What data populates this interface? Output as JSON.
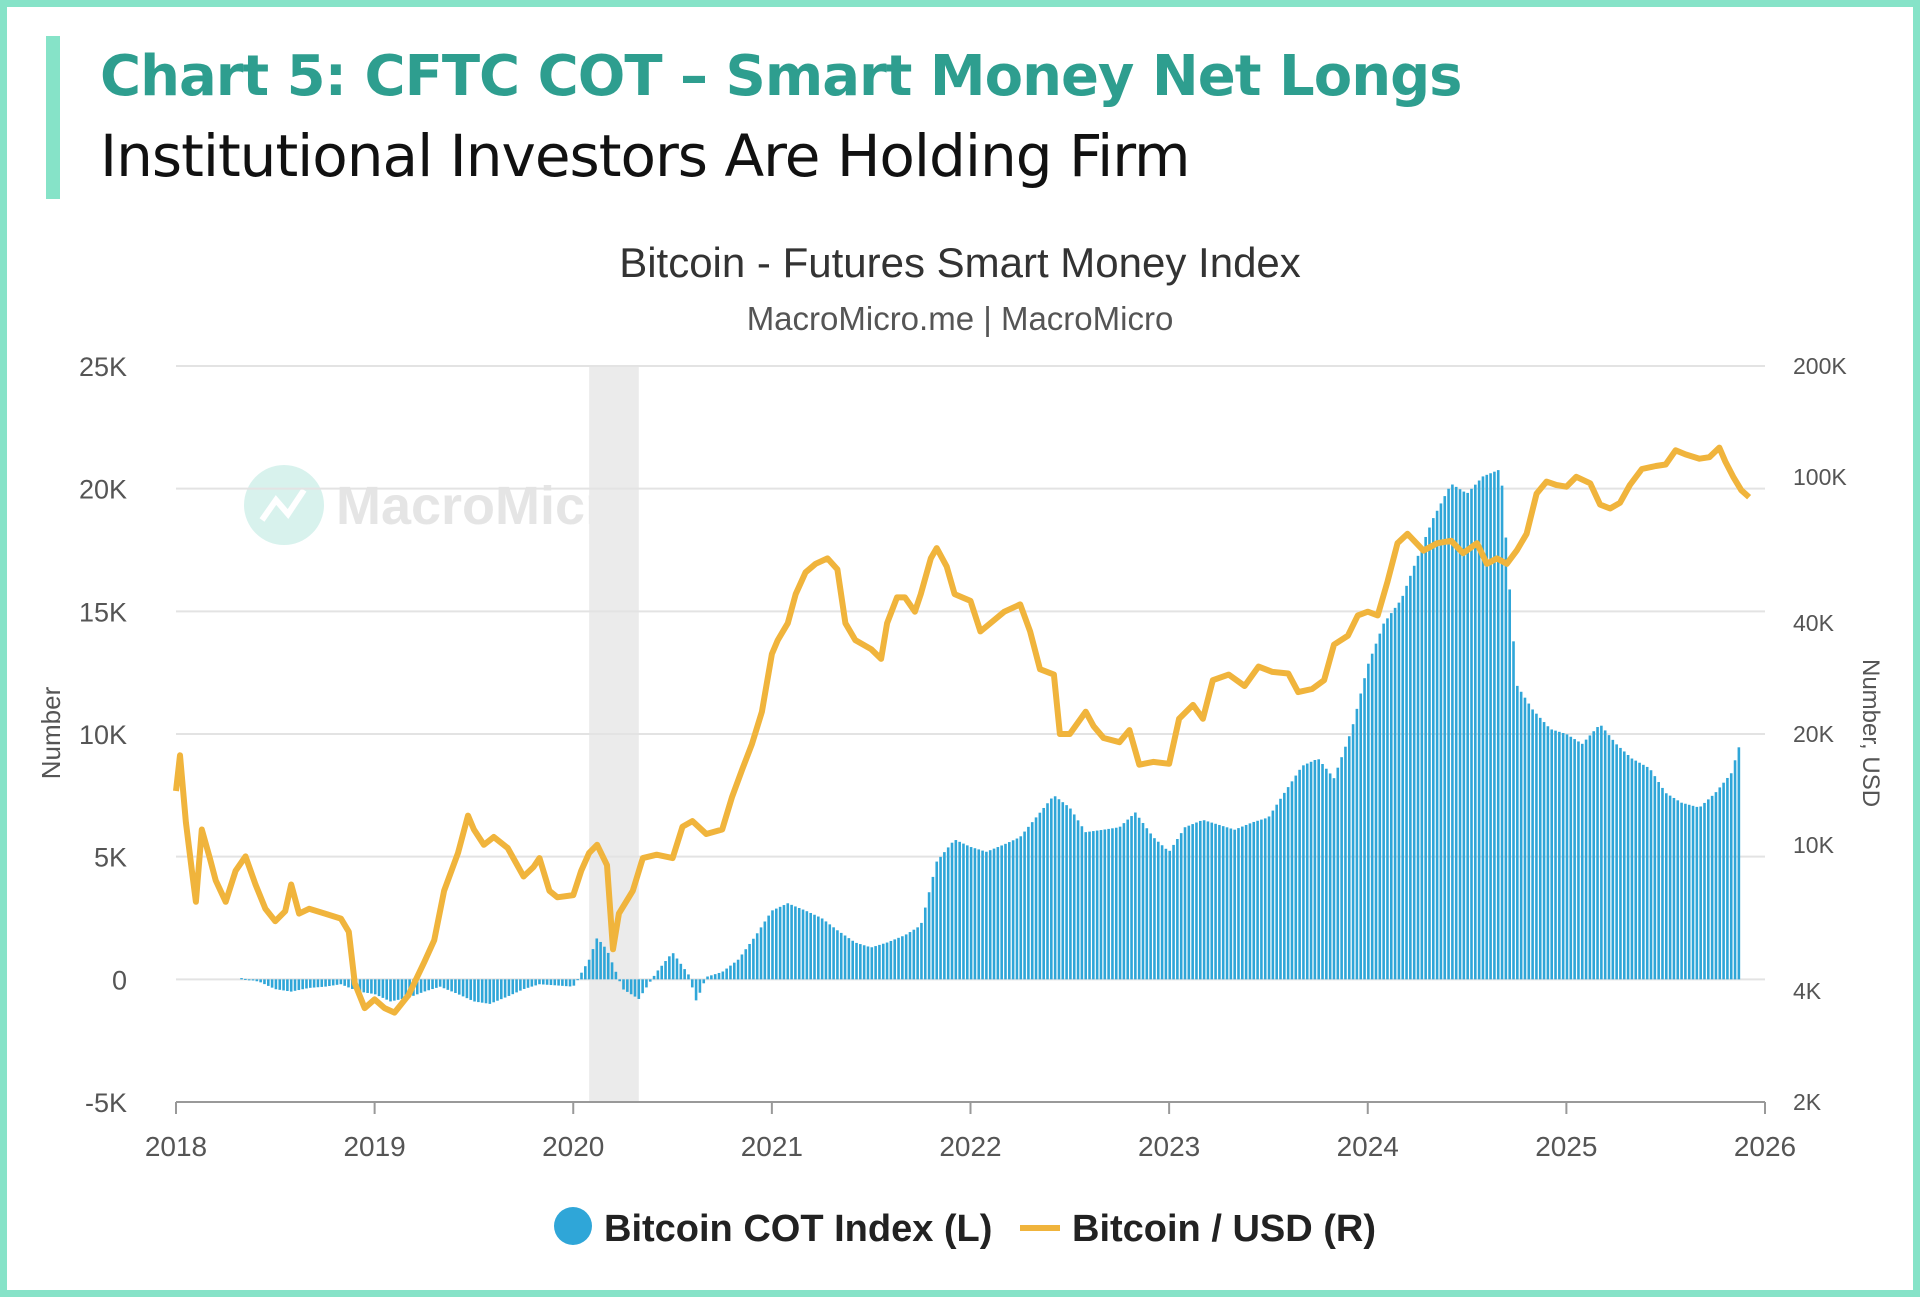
{
  "header": {
    "title": "Chart 5: CFTC COT – Smart Money Net Longs",
    "subtitle": "Institutional Investors Are Holding Firm"
  },
  "colors": {
    "frame": "#86e3c8",
    "heading_title": "#2e9e8f",
    "bars": "#2fa6d8",
    "line": "#f0b43c",
    "shading": "#ebebeb"
  },
  "watermark": {
    "text": "MacroMicro"
  },
  "chart_data": {
    "type": "bar+line",
    "title": "Bitcoin - Futures Smart Money Index",
    "subtitle": "MacroMicro.me | MacroMicro",
    "ylabel_left": "Number",
    "ylabel_right": "Number, USD",
    "x_ticks": [
      "2018",
      "2019",
      "2020",
      "2021",
      "2022",
      "2023",
      "2024",
      "2025",
      "2026"
    ],
    "x_range": [
      2018.0,
      2026.0
    ],
    "y_left": {
      "ticks": [
        "-5K",
        "0",
        "5K",
        "10K",
        "15K",
        "20K",
        "25K"
      ],
      "range": [
        -5000,
        25000
      ]
    },
    "y_right": {
      "scale": "log",
      "ticks": [
        "2K",
        "4K",
        "10K",
        "20K",
        "40K",
        "100K",
        "200K"
      ],
      "range": [
        2000,
        200000
      ]
    },
    "grid": "horizontal",
    "legend_position": "bottom",
    "shaded_period": [
      2020.08,
      2020.33
    ],
    "series": [
      {
        "name": "Bitcoin COT Index (L)",
        "type": "bar",
        "axis": "left",
        "points": [
          [
            2018.33,
            50
          ],
          [
            2018.42,
            -100
          ],
          [
            2018.5,
            -400
          ],
          [
            2018.58,
            -500
          ],
          [
            2018.67,
            -350
          ],
          [
            2018.75,
            -300
          ],
          [
            2018.83,
            -200
          ],
          [
            2018.92,
            -500
          ],
          [
            2019.0,
            -600
          ],
          [
            2019.08,
            -900
          ],
          [
            2019.17,
            -750
          ],
          [
            2019.25,
            -500
          ],
          [
            2019.33,
            -300
          ],
          [
            2019.42,
            -600
          ],
          [
            2019.5,
            -900
          ],
          [
            2019.58,
            -1000
          ],
          [
            2019.67,
            -700
          ],
          [
            2019.75,
            -400
          ],
          [
            2019.83,
            -200
          ],
          [
            2019.92,
            -250
          ],
          [
            2020.0,
            -300
          ],
          [
            2020.08,
            800
          ],
          [
            2020.12,
            1700
          ],
          [
            2020.17,
            1200
          ],
          [
            2020.25,
            -400
          ],
          [
            2020.33,
            -800
          ],
          [
            2020.42,
            300
          ],
          [
            2020.5,
            1100
          ],
          [
            2020.58,
            200
          ],
          [
            2020.62,
            -900
          ],
          [
            2020.67,
            100
          ],
          [
            2020.75,
            300
          ],
          [
            2020.83,
            800
          ],
          [
            2020.92,
            1800
          ],
          [
            2021.0,
            2800
          ],
          [
            2021.08,
            3100
          ],
          [
            2021.17,
            2800
          ],
          [
            2021.25,
            2500
          ],
          [
            2021.33,
            2000
          ],
          [
            2021.42,
            1500
          ],
          [
            2021.5,
            1300
          ],
          [
            2021.58,
            1500
          ],
          [
            2021.67,
            1800
          ],
          [
            2021.75,
            2200
          ],
          [
            2021.83,
            4800
          ],
          [
            2021.92,
            5700
          ],
          [
            2022.0,
            5400
          ],
          [
            2022.08,
            5200
          ],
          [
            2022.17,
            5500
          ],
          [
            2022.25,
            5800
          ],
          [
            2022.33,
            6600
          ],
          [
            2022.42,
            7500
          ],
          [
            2022.5,
            7000
          ],
          [
            2022.58,
            6000
          ],
          [
            2022.67,
            6100
          ],
          [
            2022.75,
            6200
          ],
          [
            2022.83,
            6800
          ],
          [
            2022.92,
            5800
          ],
          [
            2023.0,
            5200
          ],
          [
            2023.08,
            6200
          ],
          [
            2023.17,
            6500
          ],
          [
            2023.25,
            6300
          ],
          [
            2023.33,
            6100
          ],
          [
            2023.42,
            6400
          ],
          [
            2023.5,
            6600
          ],
          [
            2023.58,
            7600
          ],
          [
            2023.67,
            8700
          ],
          [
            2023.75,
            9000
          ],
          [
            2023.83,
            8200
          ],
          [
            2023.92,
            10200
          ],
          [
            2024.0,
            12800
          ],
          [
            2024.08,
            14500
          ],
          [
            2024.17,
            15500
          ],
          [
            2024.25,
            17200
          ],
          [
            2024.33,
            18800
          ],
          [
            2024.42,
            20200
          ],
          [
            2024.5,
            19800
          ],
          [
            2024.58,
            20500
          ],
          [
            2024.67,
            20800
          ],
          [
            2024.75,
            12000
          ],
          [
            2024.83,
            11000
          ],
          [
            2024.92,
            10200
          ],
          [
            2025.0,
            10000
          ],
          [
            2025.08,
            9600
          ],
          [
            2025.17,
            10400
          ],
          [
            2025.25,
            9600
          ],
          [
            2025.33,
            9000
          ],
          [
            2025.42,
            8600
          ],
          [
            2025.5,
            7600
          ],
          [
            2025.58,
            7200
          ],
          [
            2025.67,
            7000
          ],
          [
            2025.75,
            7600
          ],
          [
            2025.83,
            8400
          ],
          [
            2025.87,
            9500
          ]
        ]
      },
      {
        "name": "Bitcoin / USD (R)",
        "type": "line",
        "axis": "right",
        "points": [
          [
            2018.0,
            14000
          ],
          [
            2018.02,
            17500
          ],
          [
            2018.05,
            11500
          ],
          [
            2018.08,
            8500
          ],
          [
            2018.1,
            7000
          ],
          [
            2018.13,
            11000
          ],
          [
            2018.17,
            9200
          ],
          [
            2018.2,
            8000
          ],
          [
            2018.25,
            7000
          ],
          [
            2018.3,
            8500
          ],
          [
            2018.35,
            9300
          ],
          [
            2018.4,
            7800
          ],
          [
            2018.45,
            6700
          ],
          [
            2018.5,
            6200
          ],
          [
            2018.55,
            6600
          ],
          [
            2018.58,
            7800
          ],
          [
            2018.62,
            6500
          ],
          [
            2018.67,
            6700
          ],
          [
            2018.75,
            6500
          ],
          [
            2018.83,
            6300
          ],
          [
            2018.87,
            5800
          ],
          [
            2018.9,
            4200
          ],
          [
            2018.95,
            3600
          ],
          [
            2019.0,
            3800
          ],
          [
            2019.05,
            3600
          ],
          [
            2019.1,
            3500
          ],
          [
            2019.17,
            3900
          ],
          [
            2019.25,
            4800
          ],
          [
            2019.3,
            5500
          ],
          [
            2019.35,
            7500
          ],
          [
            2019.42,
            9500
          ],
          [
            2019.47,
            12000
          ],
          [
            2019.5,
            11000
          ],
          [
            2019.55,
            10000
          ],
          [
            2019.6,
            10500
          ],
          [
            2019.67,
            9800
          ],
          [
            2019.75,
            8200
          ],
          [
            2019.8,
            8700
          ],
          [
            2019.83,
            9200
          ],
          [
            2019.88,
            7500
          ],
          [
            2019.92,
            7200
          ],
          [
            2020.0,
            7300
          ],
          [
            2020.04,
            8500
          ],
          [
            2020.08,
            9500
          ],
          [
            2020.12,
            10000
          ],
          [
            2020.17,
            8800
          ],
          [
            2020.2,
            5200
          ],
          [
            2020.23,
            6500
          ],
          [
            2020.3,
            7500
          ],
          [
            2020.35,
            9200
          ],
          [
            2020.42,
            9400
          ],
          [
            2020.5,
            9200
          ],
          [
            2020.55,
            11200
          ],
          [
            2020.6,
            11600
          ],
          [
            2020.67,
            10700
          ],
          [
            2020.75,
            11000
          ],
          [
            2020.8,
            13500
          ],
          [
            2020.85,
            16000
          ],
          [
            2020.9,
            18800
          ],
          [
            2020.95,
            23000
          ],
          [
            2021.0,
            33000
          ],
          [
            2021.03,
            36000
          ],
          [
            2021.08,
            40000
          ],
          [
            2021.12,
            48000
          ],
          [
            2021.17,
            55000
          ],
          [
            2021.22,
            58000
          ],
          [
            2021.28,
            60000
          ],
          [
            2021.33,
            56000
          ],
          [
            2021.37,
            40000
          ],
          [
            2021.42,
            36000
          ],
          [
            2021.5,
            34000
          ],
          [
            2021.55,
            32000
          ],
          [
            2021.58,
            40000
          ],
          [
            2021.63,
            47000
          ],
          [
            2021.67,
            47000
          ],
          [
            2021.72,
            43000
          ],
          [
            2021.75,
            48000
          ],
          [
            2021.8,
            60000
          ],
          [
            2021.83,
            64000
          ],
          [
            2021.88,
            57000
          ],
          [
            2021.92,
            48000
          ],
          [
            2022.0,
            46000
          ],
          [
            2022.05,
            38000
          ],
          [
            2022.1,
            40000
          ],
          [
            2022.17,
            43000
          ],
          [
            2022.25,
            45000
          ],
          [
            2022.3,
            38000
          ],
          [
            2022.35,
            30000
          ],
          [
            2022.42,
            29000
          ],
          [
            2022.45,
            20000
          ],
          [
            2022.5,
            20000
          ],
          [
            2022.58,
            23000
          ],
          [
            2022.62,
            21000
          ],
          [
            2022.67,
            19500
          ],
          [
            2022.75,
            19000
          ],
          [
            2022.8,
            20500
          ],
          [
            2022.85,
            16500
          ],
          [
            2022.92,
            16800
          ],
          [
            2023.0,
            16600
          ],
          [
            2023.05,
            22000
          ],
          [
            2023.12,
            24000
          ],
          [
            2023.17,
            22000
          ],
          [
            2023.22,
            28000
          ],
          [
            2023.3,
            29000
          ],
          [
            2023.38,
            27000
          ],
          [
            2023.45,
            30500
          ],
          [
            2023.52,
            29500
          ],
          [
            2023.6,
            29200
          ],
          [
            2023.65,
            26000
          ],
          [
            2023.72,
            26500
          ],
          [
            2023.78,
            28000
          ],
          [
            2023.83,
            35000
          ],
          [
            2023.9,
            37000
          ],
          [
            2023.95,
            42000
          ],
          [
            2024.0,
            43000
          ],
          [
            2024.05,
            42000
          ],
          [
            2024.1,
            52000
          ],
          [
            2024.15,
            66000
          ],
          [
            2024.2,
            70000
          ],
          [
            2024.28,
            63000
          ],
          [
            2024.35,
            66000
          ],
          [
            2024.42,
            67000
          ],
          [
            2024.48,
            62000
          ],
          [
            2024.55,
            66000
          ],
          [
            2024.6,
            58000
          ],
          [
            2024.65,
            60000
          ],
          [
            2024.7,
            58000
          ],
          [
            2024.75,
            63000
          ],
          [
            2024.8,
            70000
          ],
          [
            2024.85,
            90000
          ],
          [
            2024.9,
            97000
          ],
          [
            2024.95,
            95000
          ],
          [
            2025.0,
            94000
          ],
          [
            2025.05,
            100000
          ],
          [
            2025.12,
            96000
          ],
          [
            2025.17,
            84000
          ],
          [
            2025.22,
            82000
          ],
          [
            2025.27,
            85000
          ],
          [
            2025.32,
            95000
          ],
          [
            2025.38,
            105000
          ],
          [
            2025.45,
            107000
          ],
          [
            2025.5,
            108000
          ],
          [
            2025.55,
            118000
          ],
          [
            2025.6,
            115000
          ],
          [
            2025.67,
            112000
          ],
          [
            2025.72,
            113000
          ],
          [
            2025.77,
            120000
          ],
          [
            2025.8,
            110000
          ],
          [
            2025.84,
            100000
          ],
          [
            2025.88,
            92000
          ],
          [
            2025.92,
            88000
          ]
        ]
      }
    ]
  }
}
